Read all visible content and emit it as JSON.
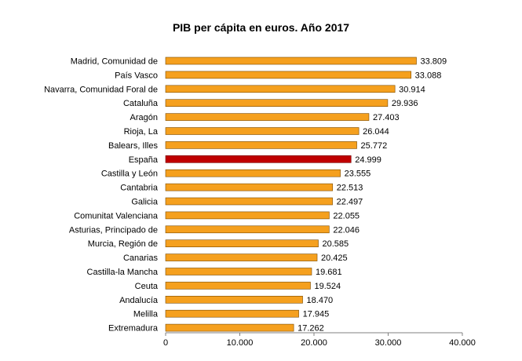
{
  "chart_data": {
    "type": "bar",
    "orientation": "horizontal",
    "title": "PIB per cápita en euros. Año 2017",
    "xlabel": "",
    "ylabel": "",
    "xlim": [
      0,
      40000
    ],
    "x_ticks": [
      0,
      10000,
      20000,
      30000,
      40000
    ],
    "x_tick_labels": [
      "0",
      "10.000",
      "20.000",
      "30.000",
      "40.000"
    ],
    "grid": false,
    "bar_color": "#F5A01E",
    "highlight_color": "#C00000",
    "bar_stroke_color": "#7A4A00",
    "categories": [
      "Madrid, Comunidad de",
      "País Vasco",
      "Navarra, Comunidad Foral de",
      "Cataluña",
      "Aragón",
      "Rioja, La",
      "Balears, Illes",
      "España",
      "Castilla y León",
      "Cantabria",
      "Galicia",
      "Comunitat Valenciana",
      "Asturias, Principado de",
      "Murcia, Región de",
      "Canarias",
      "Castilla-la Mancha",
      "Ceuta",
      "Andalucía",
      "Melilla",
      "Extremadura"
    ],
    "values": [
      33809,
      33088,
      30914,
      29936,
      27403,
      26044,
      25772,
      24999,
      23555,
      22513,
      22497,
      22055,
      22046,
      20585,
      20425,
      19681,
      19524,
      18470,
      17945,
      17262
    ],
    "value_labels": [
      "33.809",
      "33.088",
      "30.914",
      "29.936",
      "27.403",
      "26.044",
      "25.772",
      "24.999",
      "23.555",
      "22.513",
      "22.497",
      "22.055",
      "22.046",
      "20.585",
      "20.425",
      "19.681",
      "19.524",
      "18.470",
      "17.945",
      "17.262"
    ],
    "highlight": [
      "España"
    ]
  }
}
